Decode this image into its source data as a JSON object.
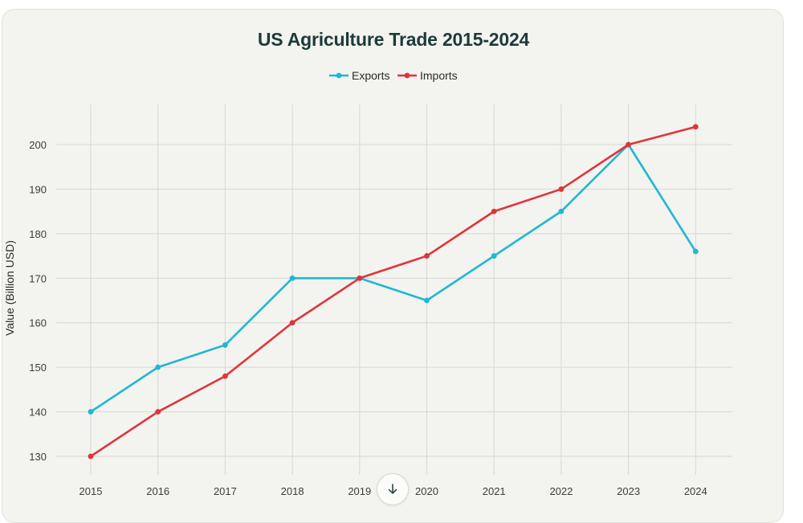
{
  "colors": {
    "exports": "#1fb8d2",
    "imports": "#e0343b",
    "grid": "#d8d8d2",
    "text": "#3c3c3c",
    "title": "#1d3a3a"
  },
  "scroll_button": {
    "icon": "arrow-down-icon"
  },
  "chart_data": {
    "type": "line",
    "title": "US Agriculture Trade 2015-2024",
    "xlabel": "",
    "ylabel": "Value (Billion USD)",
    "categories": [
      "2015",
      "2016",
      "2017",
      "2018",
      "2019",
      "2020",
      "2021",
      "2022",
      "2023",
      "2024"
    ],
    "yticks": [
      130,
      140,
      150,
      160,
      170,
      180,
      190,
      200
    ],
    "ylim": [
      127,
      209
    ],
    "grid": true,
    "legend_position": "top-center",
    "series": [
      {
        "name": "Exports",
        "values": [
          140,
          150,
          155,
          170,
          170,
          165,
          175,
          185,
          200,
          176
        ]
      },
      {
        "name": "Imports",
        "values": [
          130,
          140,
          148,
          160,
          170,
          175,
          185,
          190,
          200,
          204
        ]
      }
    ]
  }
}
